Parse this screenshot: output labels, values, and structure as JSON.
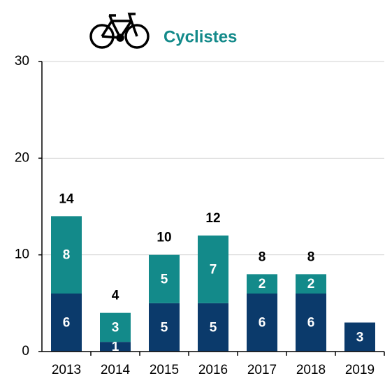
{
  "chart_data": {
    "type": "stacked_bar",
    "title": "Cyclistes",
    "categories": [
      "2013",
      "2014",
      "2015",
      "2016",
      "2017",
      "2018",
      "2019"
    ],
    "series": [
      {
        "color": "#0b3a6b",
        "values": [
          6,
          1,
          5,
          5,
          6,
          6,
          3
        ]
      },
      {
        "color": "#138a8a",
        "values": [
          8,
          3,
          5,
          7,
          2,
          2,
          null
        ]
      }
    ],
    "totals": [
      14,
      4,
      10,
      12,
      8,
      8,
      null
    ],
    "ylim": [
      0,
      30
    ],
    "yticks": [
      0,
      10,
      20,
      30
    ],
    "grid": true
  }
}
